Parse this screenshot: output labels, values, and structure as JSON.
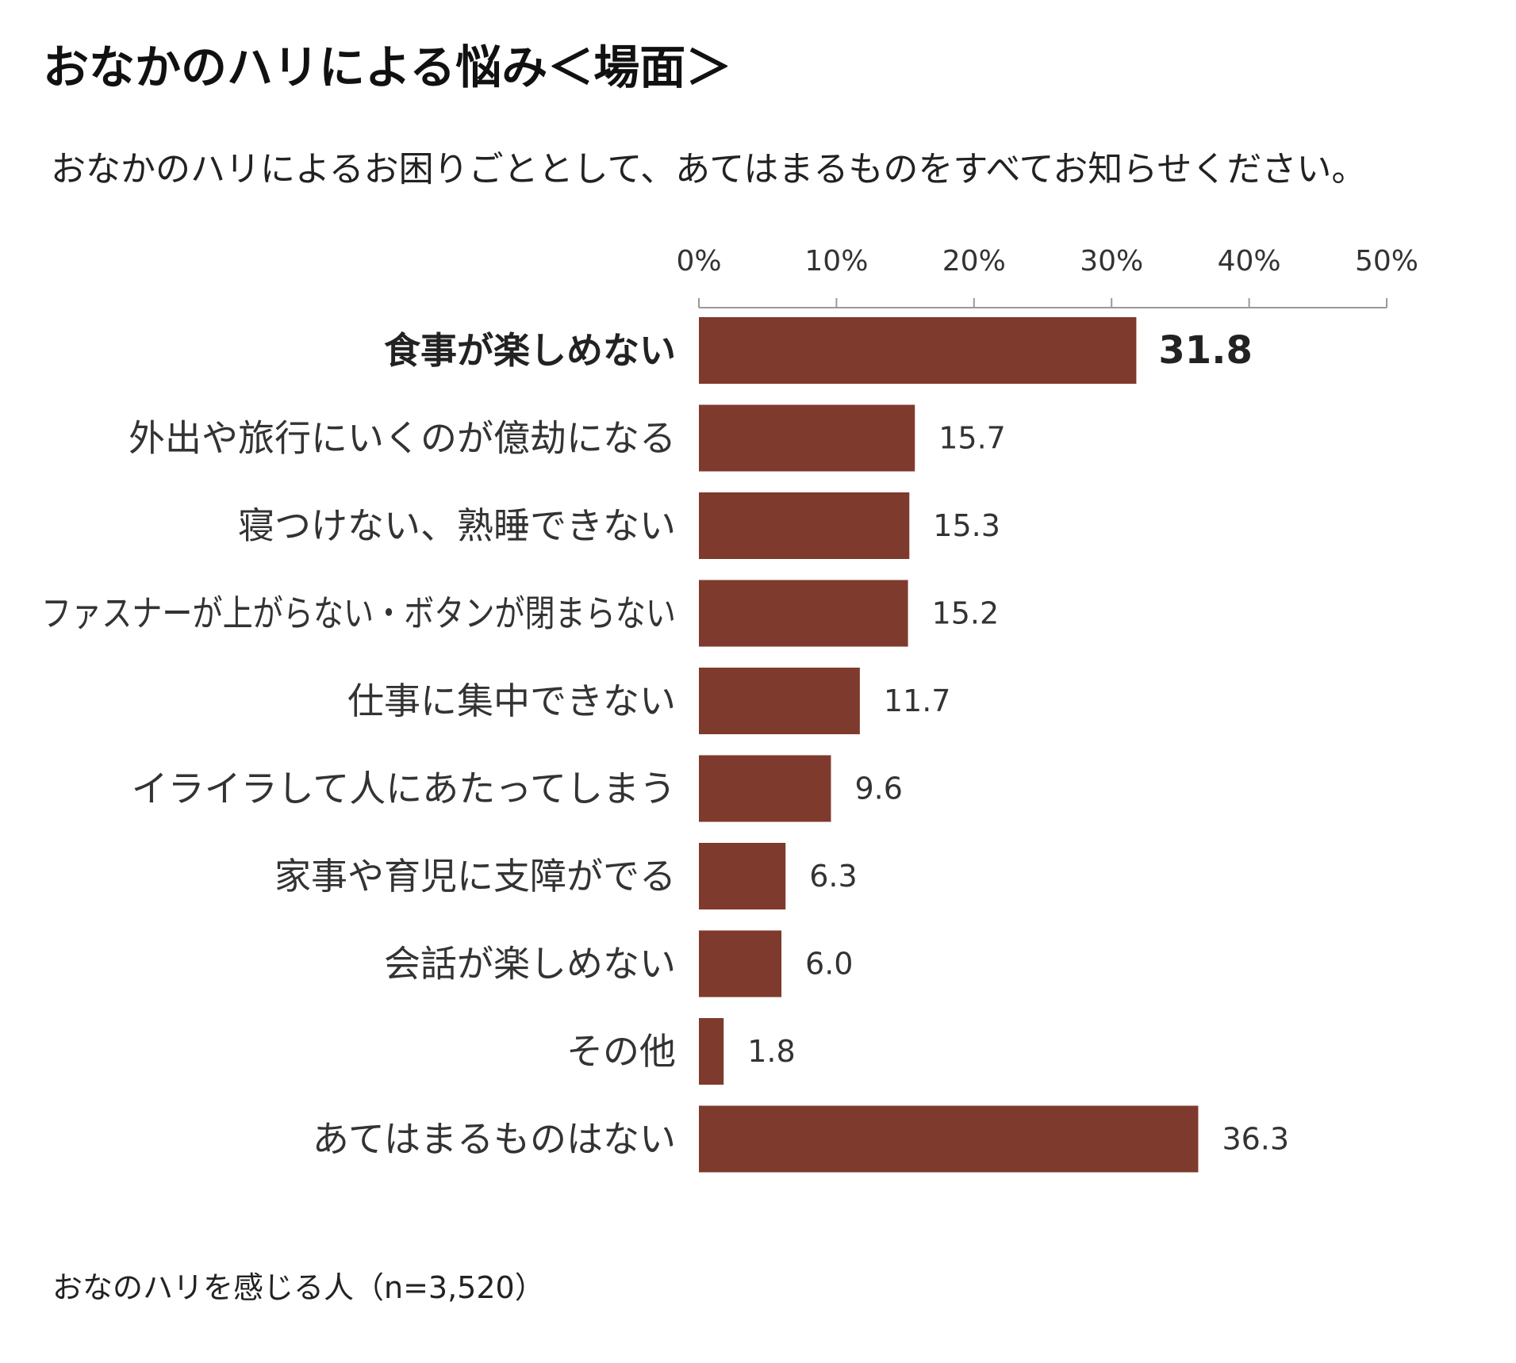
{
  "title": "おなかのハリによる悩み＜場面＞",
  "subtitle": "おなかのハリによるお困りごととして、あてはまるものをすべてお知らせください。",
  "footnote": "おなのハリを感じる人（n=3,520）",
  "colors": {
    "bar": "#7f3a2e",
    "axis": "#999999",
    "text": "#333333"
  },
  "chart_data": {
    "type": "bar",
    "orientation": "horizontal",
    "title": "おなかのハリによる悩み＜場面＞",
    "subtitle": "おなかのハリによるお困りごととして、あてはまるものをすべてお知らせください。",
    "xlim": [
      0,
      50
    ],
    "x_tick_labels": [
      "0%",
      "10%",
      "20%",
      "30%",
      "40%",
      "50%"
    ],
    "axis_position": "top",
    "grid": false,
    "highlighted_category": "食事が楽しめない",
    "categories": [
      "食事が楽しめない",
      "外出や旅行にいくのが億劫になる",
      "寝つけない、熟睡できない",
      "ファスナーが上がらない・ボタンが閉まらない",
      "仕事に集中できない",
      "イライラして人にあたってしまう",
      "家事や育児に支障がでる",
      "会話が楽しめない",
      "その他",
      "あてはまるものはない"
    ],
    "values": [
      31.8,
      15.7,
      15.3,
      15.2,
      11.7,
      9.6,
      6.3,
      6.0,
      1.8,
      36.3
    ],
    "value_labels": [
      "31.8",
      "15.7",
      "15.3",
      "15.2",
      "11.7",
      "9.6",
      "6.3",
      "6.0",
      "1.8",
      "36.3"
    ]
  }
}
